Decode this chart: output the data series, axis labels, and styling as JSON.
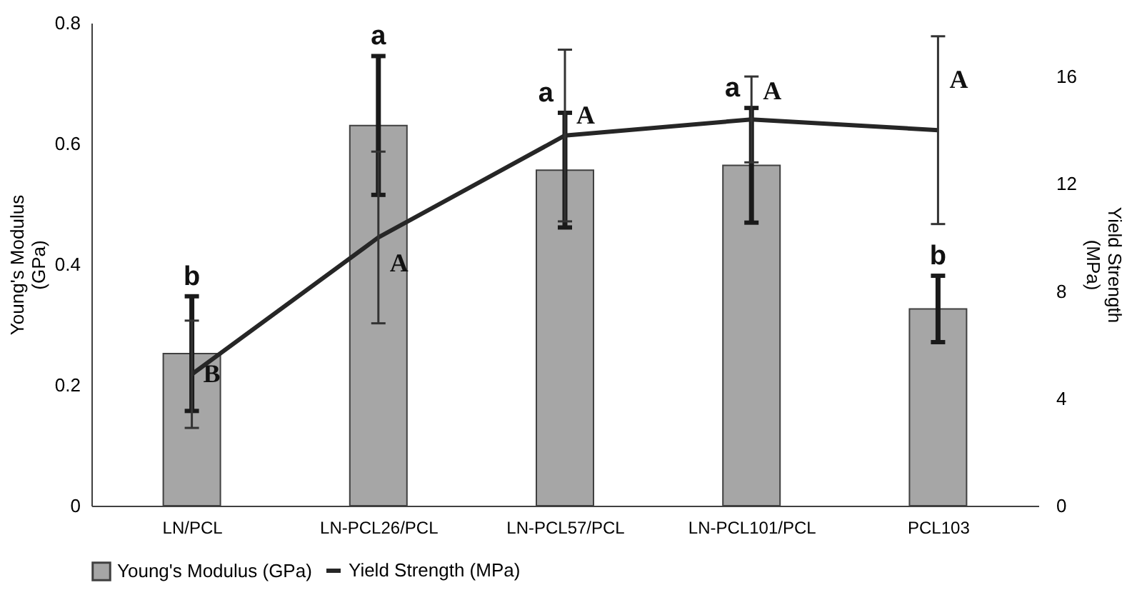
{
  "chart_data": {
    "type": "bar",
    "categories": [
      "LN/PCL",
      "LN-PCL26/PCL",
      "LN-PCL57/PCL",
      "LN-PCL101/PCL",
      "PCL103"
    ],
    "series": [
      {
        "name": "Young's Modulus (GPa)",
        "color": "#a6a6a6",
        "values": [
          0.252,
          0.63,
          0.556,
          0.564,
          0.326
        ],
        "errors": [
          0.095,
          0.115,
          0.095,
          0.095,
          0.055
        ]
      },
      {
        "name": "Yield Strength (MPa)",
        "type": "line",
        "axis": "y2",
        "color": "#262626",
        "values": [
          4.9,
          10.0,
          13.8,
          14.4,
          14.0
        ],
        "errors": [
          2.0,
          3.2,
          3.2,
          1.6,
          3.5
        ]
      }
    ],
    "ylabel": "Young's Modulus (GPa)",
    "y2label": "Yield Strength (MPa)",
    "ylim": [
      0,
      0.8
    ],
    "yticks": [
      {
        "value": 0,
        "label": "0"
      },
      0.2,
      0.4,
      0.6,
      0.8
    ],
    "y2lim": [
      0,
      18
    ],
    "y2ticks": [
      0,
      4,
      8,
      12,
      16
    ],
    "legend": "bottom",
    "annotations": [
      {
        "text": "b",
        "x": "LN/PCL",
        "y": 0.347
      },
      {
        "text": "B",
        "x": "LN/PCL",
        "y": 0.217
      },
      {
        "text": "a",
        "x": "LN-PCL26/PCL",
        "y": 0.745
      },
      {
        "text": "A",
        "x": "LN-PCL26/PCL",
        "y": 0.4
      },
      {
        "text": "a",
        "x": "LN-PCL57/PCL",
        "y": 0.651
      },
      {
        "text": "A",
        "x": "LN-PCL57/PCL",
        "y": 0.645
      },
      {
        "text": "a",
        "x": "LN-PCL101/PCL",
        "y": 0.659
      },
      {
        "text": "A",
        "x": "LN-PCL101/PCL",
        "y": 0.685
      },
      {
        "text": "b",
        "x": "PCL103",
        "y": 0.381
      },
      {
        "text": "A",
        "x": "PCL103",
        "y": 0.704
      }
    ]
  }
}
